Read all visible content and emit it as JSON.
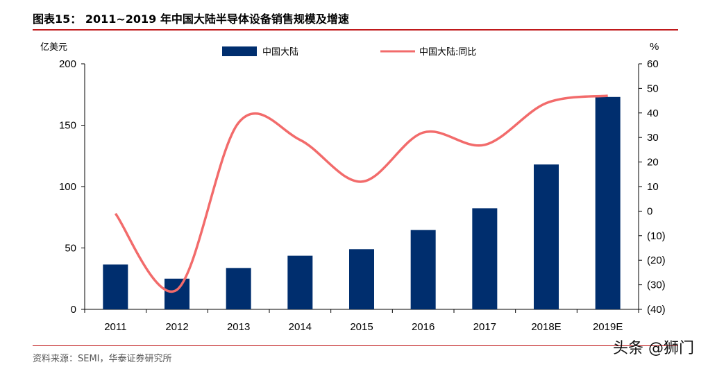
{
  "header": {
    "title": "图表15：  2011~2019 年中国大陆半导体设备销售规模及增速"
  },
  "footer": {
    "source": "资料来源：SEMI，华泰证券研究所"
  },
  "watermark": {
    "text": "头条 @狮门"
  },
  "colors": {
    "bar": "#002e6e",
    "line": "#f26b6b",
    "rule": "#c0191b",
    "axis": "#000000"
  },
  "chart_data": {
    "type": "bar",
    "title": "",
    "categories": [
      "2011",
      "2012",
      "2013",
      "2014",
      "2015",
      "2016",
      "2017",
      "2018E",
      "2019E"
    ],
    "series": [
      {
        "name": "中国大陆",
        "type": "bar",
        "axis": "left",
        "values": [
          36.5,
          25,
          33.7,
          43.7,
          49,
          64.6,
          82.3,
          118,
          173
        ]
      },
      {
        "name": "中国大陆:同比",
        "type": "line",
        "axis": "right",
        "values": [
          -1,
          -32,
          36,
          29,
          12,
          32,
          27,
          44,
          47
        ]
      }
    ],
    "ylabel": "亿美元",
    "y2label": "%",
    "ylim": [
      0,
      200
    ],
    "yticks": [
      0,
      50,
      100,
      150,
      200
    ],
    "ytick_labels": [
      "0",
      "50",
      "100",
      "150",
      "200"
    ],
    "y2lim": [
      -40,
      60
    ],
    "y2ticks": [
      -40,
      -30,
      -20,
      -10,
      0,
      10,
      20,
      30,
      40,
      50,
      60
    ],
    "y2tick_labels": [
      "(40)",
      "(30)",
      "(20)",
      "(10)",
      "0",
      "10",
      "20",
      "30",
      "40",
      "50",
      "60"
    ],
    "grid": false,
    "legend_position": "top-center"
  }
}
